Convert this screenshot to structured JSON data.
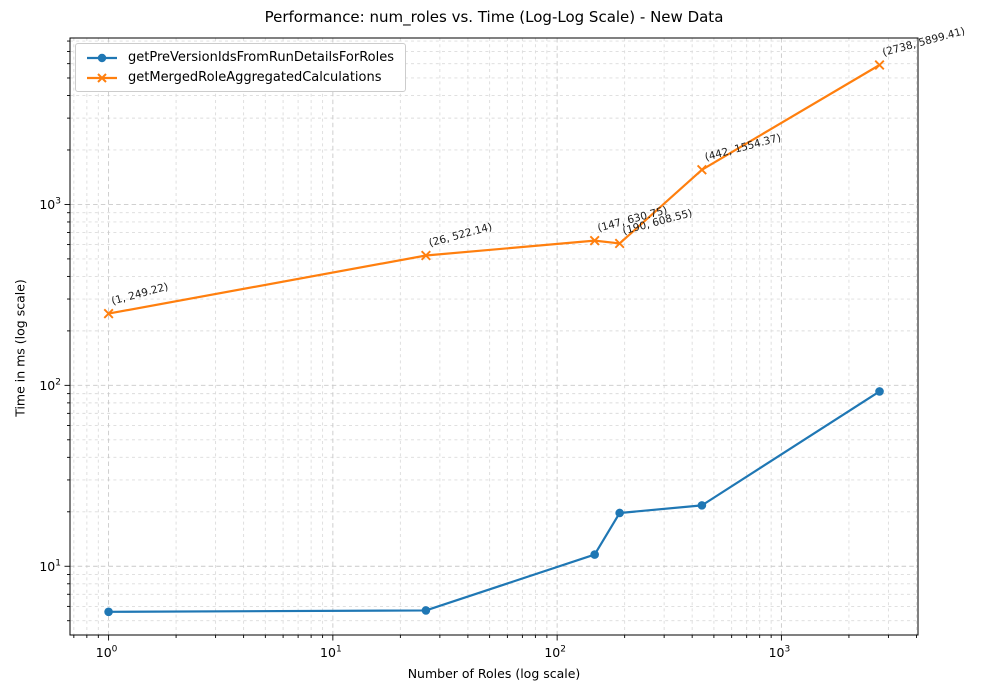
{
  "chart_data": {
    "type": "line",
    "title": "Performance: num_roles vs. Time (Log-Log Scale) - New Data",
    "xlabel": "Number of Roles (log scale)",
    "ylabel": "Time in ms (log scale)",
    "x_scale": "log",
    "y_scale": "log",
    "xlim_log10": [
      -0.172,
      3.609
    ],
    "ylim_log10": [
      0.62,
      3.92
    ],
    "x_major_tick_exponents": [
      0,
      1,
      2,
      3
    ],
    "y_major_tick_exponents": [
      1,
      2,
      3
    ],
    "grid": "both-major-minor-dashed",
    "legend_position": "upper-left",
    "background_color": "#ffffff",
    "annotation_style": {
      "rotation_deg": -15,
      "color": "#1a1a1a",
      "font_size": 10.5
    },
    "series": [
      {
        "name": "getPreVersionIdsFromRunDetailsForRoles",
        "color": "#1f77b4",
        "marker": "circle",
        "x": [
          1,
          26,
          147,
          190,
          442,
          2738
        ],
        "y": [
          5.6,
          5.7,
          11.6,
          19.7,
          21.7,
          92.5
        ],
        "annotations": []
      },
      {
        "name": "getMergedRoleAggregatedCalculations",
        "color": "#ff7f0e",
        "marker": "x",
        "x": [
          1,
          26,
          147,
          190,
          442,
          2738
        ],
        "y": [
          249.22,
          522.14,
          630.75,
          608.55,
          1554.37,
          5899.41
        ],
        "annotations": [
          "(1, 249.22)",
          "(26, 522.14)",
          "(147, 630.75)",
          "(190, 608.55)",
          "(442, 1554.37)",
          "(2738, 5899.41)"
        ]
      }
    ]
  }
}
